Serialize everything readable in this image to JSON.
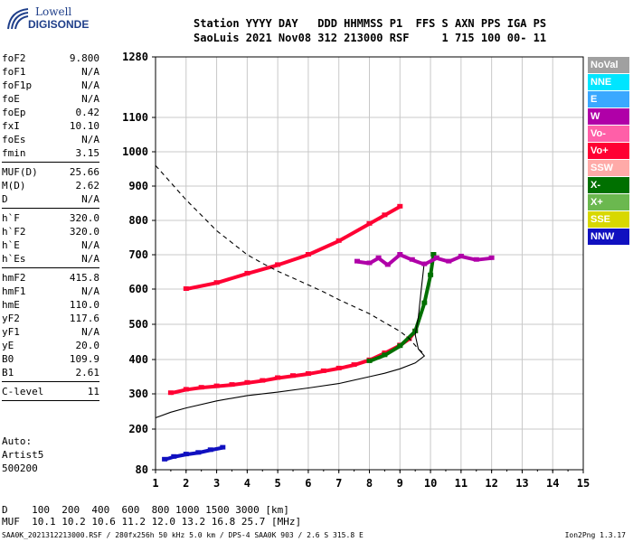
{
  "logo": {
    "line1": "Lowell",
    "line2": "DIGISONDE"
  },
  "header": {
    "line1": "Station YYYY DAY   DDD HHMMSS P1  FFS S AXN PPS IGA PS",
    "line2": "SaoLuis 2021 Nov08 312 213000 RSF     1 715 100 00- 11"
  },
  "params": {
    "group1": [
      {
        "name": "foF2",
        "value": "9.800"
      },
      {
        "name": "foF1",
        "value": "N/A"
      },
      {
        "name": "foF1p",
        "value": "N/A"
      },
      {
        "name": "foE",
        "value": "N/A"
      },
      {
        "name": "foEp",
        "value": "0.42"
      },
      {
        "name": "fxI",
        "value": "10.10"
      },
      {
        "name": "foEs",
        "value": "N/A"
      },
      {
        "name": "fmin",
        "value": "3.15"
      }
    ],
    "group2": [
      {
        "name": "MUF(D)",
        "value": "25.66"
      },
      {
        "name": "M(D)",
        "value": "2.62"
      },
      {
        "name": "D",
        "value": "N/A"
      }
    ],
    "group3": [
      {
        "name": "h`F",
        "value": "320.0"
      },
      {
        "name": "h`F2",
        "value": "320.0"
      },
      {
        "name": "h`E",
        "value": "N/A"
      },
      {
        "name": "h`Es",
        "value": "N/A"
      }
    ],
    "group4": [
      {
        "name": "hmF2",
        "value": "415.8"
      },
      {
        "name": "hmF1",
        "value": "N/A"
      },
      {
        "name": "hmE",
        "value": "110.0"
      },
      {
        "name": "yF2",
        "value": "117.6"
      },
      {
        "name": "yF1",
        "value": "N/A"
      },
      {
        "name": "yE",
        "value": "20.0"
      },
      {
        "name": "B0",
        "value": "109.9"
      },
      {
        "name": "B1",
        "value": "2.61"
      }
    ],
    "group5": [
      {
        "name": "C-level",
        "value": "11"
      }
    ]
  },
  "auto": {
    "line1": "Auto:",
    "line2": "Artist5",
    "line3": "500200"
  },
  "muf_table": {
    "line1": "D    100  200  400  600  800 1000 1500 3000 [km]",
    "line2": "MUF  10.1 10.2 10.6 11.2 12.0 13.2 16.8 25.7 [MHz]"
  },
  "footer": {
    "left": "SAA0K_2021312213000.RSF / 280fx256h 50 kHz 5.0 km / DPS-4 SAA0K 903 / 2.6 S 315.8 E",
    "right": "Ion2Png 1.3.17"
  },
  "legend": [
    {
      "label": "NoVal",
      "color": "#a0a0a0"
    },
    {
      "label": "NNE",
      "color": "#00e5ff"
    },
    {
      "label": "E",
      "color": "#3aa8ff"
    },
    {
      "label": "W",
      "color": "#b000a8"
    },
    {
      "label": "Vo-",
      "color": "#ff5fa8"
    },
    {
      "label": "Vo+",
      "color": "#ff0033"
    },
    {
      "label": "SSW",
      "color": "#ffaaa8"
    },
    {
      "label": "X-",
      "color": "#007000"
    },
    {
      "label": "X+",
      "color": "#6bb84f"
    },
    {
      "label": "SSE",
      "color": "#d8d800"
    },
    {
      "label": "NNW",
      "color": "#1010c0"
    }
  ],
  "chart_data": {
    "type": "scatter",
    "xlim": [
      1,
      15
    ],
    "ylim": [
      80,
      1280
    ],
    "x_ticks": [
      1,
      2,
      3,
      4,
      5,
      6,
      7,
      8,
      9,
      10,
      11,
      12,
      13,
      14,
      15
    ],
    "y_ticks": [
      80,
      200,
      300,
      400,
      500,
      600,
      700,
      800,
      900,
      1000,
      1100,
      1280
    ],
    "grid": true,
    "series": [
      {
        "name": "O-trace",
        "color": "#ff0033",
        "x": [
          1.5,
          2,
          2.5,
          3,
          3.5,
          4,
          4.5,
          5,
          5.5,
          6,
          6.5,
          7,
          7.5,
          8,
          8.5,
          9,
          9.3,
          9.5
        ],
        "y": [
          302,
          312,
          318,
          322,
          326,
          332,
          338,
          346,
          352,
          358,
          366,
          374,
          384,
          398,
          418,
          440,
          458,
          480
        ]
      },
      {
        "name": "O-trace-2hop",
        "color": "#ff0033",
        "x": [
          2,
          3,
          4,
          5,
          6,
          7,
          8,
          8.5,
          9
        ],
        "y": [
          600,
          618,
          645,
          670,
          700,
          740,
          790,
          815,
          840
        ]
      },
      {
        "name": "X-trace",
        "color": "#007000",
        "x": [
          8,
          8.5,
          9,
          9.5,
          9.8,
          10,
          10.1
        ],
        "y": [
          395,
          412,
          438,
          480,
          560,
          640,
          700
        ]
      },
      {
        "name": "dashed-profile",
        "color": "#000000",
        "dashed": true,
        "x": [
          1,
          1.5,
          2,
          2.5,
          3,
          3.5,
          4,
          4.5,
          5,
          5.5,
          6,
          6.5,
          7,
          7.5,
          8,
          8.5,
          9,
          9.3,
          9.6,
          9.8
        ],
        "y": [
          960,
          910,
          860,
          815,
          770,
          735,
          700,
          675,
          652,
          632,
          612,
          592,
          570,
          550,
          530,
          505,
          480,
          460,
          430,
          416
        ]
      },
      {
        "name": "solid-profile",
        "color": "#000000",
        "x": [
          1,
          1.5,
          2,
          3,
          4,
          5,
          6,
          7,
          8,
          8.5,
          9,
          9.5,
          9.8,
          9.6,
          9.5,
          9.6,
          9.7,
          9.8
        ],
        "y": [
          232,
          248,
          260,
          280,
          295,
          305,
          317,
          330,
          350,
          360,
          373,
          390,
          410,
          430,
          470,
          520,
          600,
          680
        ]
      },
      {
        "name": "spread-F",
        "color": "#b000a8",
        "x": [
          7.6,
          8,
          8.3,
          8.6,
          9,
          9.4,
          9.8,
          10.2,
          10.6,
          11,
          11.5,
          12
        ],
        "y": [
          680,
          675,
          690,
          670,
          700,
          685,
          672,
          690,
          680,
          695,
          685,
          690
        ]
      },
      {
        "name": "low-echoes",
        "color": "#1010c0",
        "x": [
          1.3,
          1.6,
          2,
          2.4,
          2.8,
          3.2
        ],
        "y": [
          110,
          118,
          125,
          130,
          138,
          145
        ]
      }
    ]
  }
}
